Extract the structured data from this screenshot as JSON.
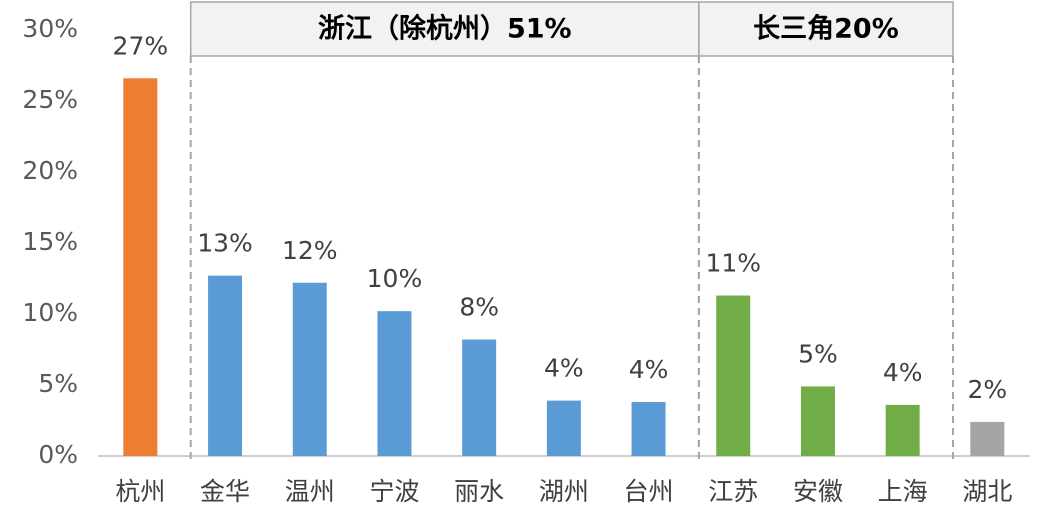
{
  "chart_data": {
    "type": "bar",
    "categories": [
      "杭州",
      "金华",
      "温州",
      "宁波",
      "丽水",
      "湖州",
      "台州",
      "江苏",
      "安徽",
      "上海",
      "湖北"
    ],
    "values": [
      26.6,
      12.7,
      12.2,
      10.2,
      8.2,
      3.9,
      3.8,
      11.3,
      4.9,
      3.6,
      2.4
    ],
    "value_labels": [
      "27%",
      "13%",
      "12%",
      "10%",
      "8%",
      "4%",
      "4%",
      "11%",
      "5%",
      "4%",
      "2%"
    ],
    "colors": [
      "#ed7d31",
      "#5b9bd5",
      "#5b9bd5",
      "#5b9bd5",
      "#5b9bd5",
      "#5b9bd5",
      "#5b9bd5",
      "#70ad47",
      "#70ad47",
      "#70ad47",
      "#a5a5a5"
    ],
    "groups": [
      {
        "label": "浙江（除杭州）51%",
        "span": [
          1,
          6
        ]
      },
      {
        "label": "长三角20%",
        "span": [
          7,
          9
        ]
      }
    ],
    "ylim": [
      0,
      30
    ],
    "yticks": [
      {
        "value": 0,
        "label": "0%"
      },
      {
        "value": 5,
        "label": "5%"
      },
      {
        "value": 10,
        "label": "10%"
      },
      {
        "value": 15,
        "label": "15%"
      },
      {
        "value": 20,
        "label": "20%"
      },
      {
        "value": 25,
        "label": "25%"
      },
      {
        "value": 30,
        "label": "30%"
      }
    ],
    "grid": false
  }
}
